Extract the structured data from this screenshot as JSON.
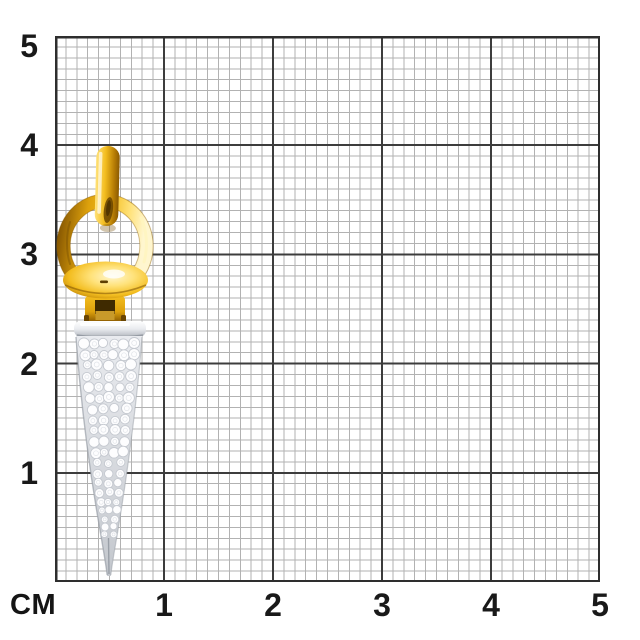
{
  "ruler": {
    "unit_label": "СМ",
    "x_ticks": [
      "1",
      "2",
      "3",
      "4",
      "5"
    ],
    "y_ticks": [
      "5",
      "4",
      "3",
      "2",
      "1"
    ]
  },
  "grid": {
    "cm_count": 5,
    "mm_per_cm": 10,
    "minor_color": "#b2b2b2",
    "major_color": "#3d3d3d",
    "border_color": "#2e2e2e",
    "background": "#ffffff",
    "label_color": "#191919"
  },
  "pendant": {
    "description": "yellow-gold horsebit pendant with pave diamond cone drop",
    "colors": {
      "gold": {
        "g1": "#fff6cf",
        "g2": "#ffe27a",
        "g3": "#f3bd1f",
        "g4": "#dda10c",
        "g5": "#b67c04",
        "g6": "#8a5a02",
        "slot": "#3f2a00",
        "slot_inner": "#c89a2a",
        "mark": "#5d3e02",
        "shadow": "#6a4500"
      },
      "silver": {
        "s1": "#ffffff",
        "s2": "#e9ebef",
        "s3": "#c3c7cd",
        "s4": "#8f959d"
      },
      "diamond": {
        "fill": "#fdfdfe",
        "stroke": "#c5c9d0",
        "inner": "#e0e3e8"
      }
    }
  }
}
